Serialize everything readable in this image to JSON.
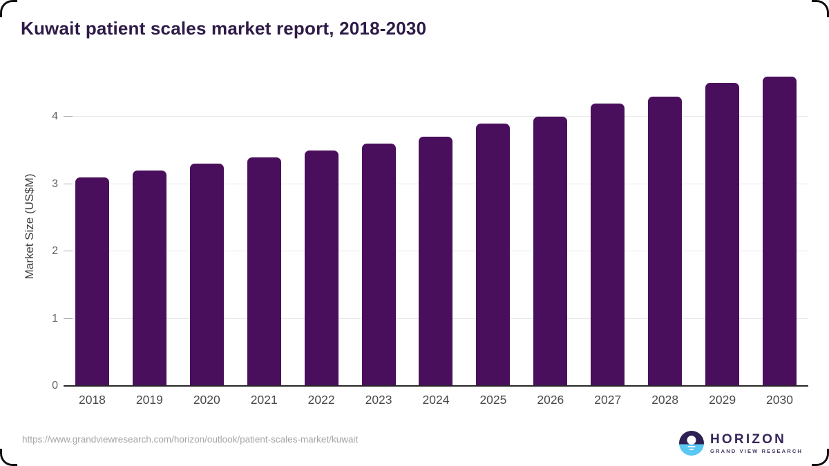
{
  "title": "Kuwait patient scales market report, 2018-2030",
  "chart_data": {
    "type": "bar",
    "categories": [
      "2018",
      "2019",
      "2020",
      "2021",
      "2022",
      "2023",
      "2024",
      "2025",
      "2026",
      "2027",
      "2028",
      "2029",
      "2030"
    ],
    "values": [
      3.1,
      3.2,
      3.3,
      3.4,
      3.5,
      3.6,
      3.7,
      3.9,
      4.0,
      4.2,
      4.3,
      4.5,
      4.6
    ],
    "title": "Kuwait patient scales market report, 2018-2030",
    "xlabel": "",
    "ylabel": "Market Size (US$M)",
    "ylim": [
      0,
      4.8
    ],
    "yticks": [
      0,
      1,
      2,
      3,
      4
    ],
    "grid": "horizontal",
    "legend": "none"
  },
  "y_axis": {
    "label": "Market Size (US$M)"
  },
  "footer": {
    "source_url": "https://www.grandviewresearch.com/horizon/outlook/patient-scales-market/kuwait",
    "logo_name": "HORIZON",
    "logo_tagline": "GRAND VIEW RESEARCH"
  },
  "colors": {
    "bar": "#4a0f5c",
    "title_text": "#2e1a47",
    "logo_name_text": "#35255a",
    "logo_tagline_text": "#453764",
    "logo_dark": "#2d2153",
    "logo_blue": "#59c8f2",
    "gridline": "#e8e8e8",
    "axis_line": "#262626"
  }
}
